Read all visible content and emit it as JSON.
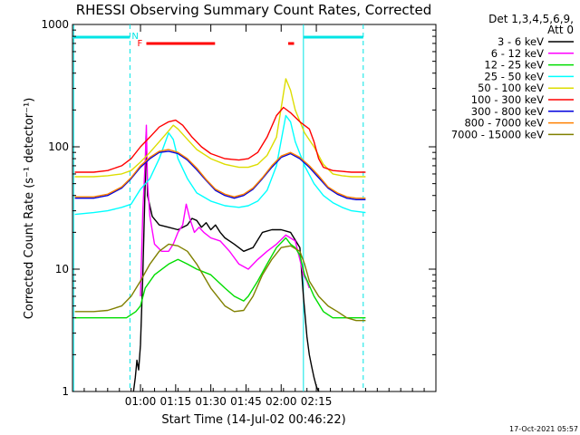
{
  "chart_data": {
    "type": "line",
    "title": "RHESSI Observing Summary Count Rates, Corrected",
    "xlabel": "Start Time (14-Jul-02 00:46:22)",
    "ylabel": "Corrected Count Rate (s⁻¹ detector⁻¹)",
    "yscale": "log",
    "ylim": [
      1,
      1000
    ],
    "xlim_minutes": [
      -15,
      140
    ],
    "x_ticks": [
      {
        "t": 14,
        "label": "01:00"
      },
      {
        "t": 29,
        "label": "01:15"
      },
      {
        "t": 44,
        "label": "01:30"
      },
      {
        "t": 59,
        "label": "01:45"
      },
      {
        "t": 74,
        "label": "02:00"
      },
      {
        "t": 89,
        "label": "02:15"
      }
    ],
    "y_ticks": [
      {
        "v": 1,
        "label": "1"
      },
      {
        "v": 10,
        "label": "10"
      },
      {
        "v": 100,
        "label": "100"
      },
      {
        "v": 1000,
        "label": "1000"
      }
    ],
    "legend_header": [
      "Det 1,3,4,5,6,9,",
      "Att 0"
    ],
    "footer_date": "17-Oct-2021 05:57",
    "flags": {
      "night_label": "N",
      "flare_label": "F",
      "night_intervals": [
        [
          -15,
          9.5
        ],
        [
          83.5,
          109
        ]
      ],
      "flare_intervals": [
        [
          16.5,
          45.8
        ],
        [
          77,
          79.5
        ]
      ],
      "saa_lines_solid": [
        -14.5,
        83.5
      ],
      "saa_lines_dashed": [
        9.5,
        109
      ],
      "night_color": "#00e5e5",
      "flare_color": "#ff0000"
    },
    "series": [
      {
        "name": "3 - 6 keV",
        "color": "#000000",
        "x": [
          11,
          11.8,
          12.5,
          13.2,
          14,
          15,
          16,
          16.4,
          17,
          19,
          22,
          26,
          30,
          34,
          36,
          38,
          40,
          42,
          44,
          46,
          48,
          50,
          54,
          58,
          62,
          66,
          70,
          74,
          78,
          82,
          83.5,
          85,
          86,
          87,
          88,
          89,
          90
        ],
        "y": [
          1.0,
          1.3,
          1.8,
          1.5,
          2.4,
          9.0,
          50,
          130,
          40,
          27,
          23,
          22,
          21,
          23,
          26,
          25,
          22,
          24,
          21,
          23,
          20,
          18,
          16,
          14,
          15,
          20,
          21,
          21,
          20,
          15,
          6,
          2.8,
          2.0,
          1.6,
          1.3,
          1.1,
          1.0
        ]
      },
      {
        "name": "6 - 12 keV",
        "color": "#ff00ff",
        "x": [
          14,
          15,
          16,
          16.5,
          17,
          18,
          20,
          23,
          26,
          28,
          30,
          32,
          33.5,
          35,
          37,
          39,
          41,
          44,
          48,
          52,
          56,
          60,
          64,
          68,
          72,
          76,
          80,
          82,
          83.5,
          85,
          86
        ],
        "y": [
          6,
          30,
          75,
          150,
          50,
          27,
          16,
          14,
          14,
          16,
          20,
          23,
          34,
          26,
          20,
          22,
          20,
          18,
          17,
          14,
          11,
          10,
          12,
          14,
          16,
          19,
          17,
          12,
          9,
          8,
          7
        ]
      },
      {
        "name": "12 - 25 keV",
        "color": "#00dd00",
        "x": [
          -14,
          -8,
          0,
          8,
          12,
          14,
          16,
          20,
          26,
          30,
          34,
          38,
          44,
          50,
          54,
          58,
          60,
          64,
          68,
          72,
          76,
          78,
          80,
          82,
          84,
          88,
          92,
          96,
          100,
          104,
          108,
          110
        ],
        "y": [
          4,
          4,
          4,
          4,
          4.5,
          5,
          7,
          9,
          11,
          12,
          11,
          10,
          9,
          7,
          6,
          5.5,
          6,
          8,
          11,
          15,
          18,
          16,
          15,
          13,
          9,
          6,
          4.5,
          4,
          4,
          4,
          4,
          4
        ]
      },
      {
        "name": "25 - 50 keV",
        "color": "#00ffff",
        "x": [
          -14,
          -6,
          0,
          6,
          10,
          14,
          18,
          22,
          26,
          28,
          30,
          34,
          38,
          44,
          50,
          56,
          60,
          64,
          68,
          72,
          76,
          78,
          80,
          84,
          88,
          92,
          96,
          100,
          104,
          110
        ],
        "y": [
          28,
          29,
          30,
          32,
          34,
          45,
          55,
          80,
          130,
          115,
          80,
          55,
          42,
          36,
          33,
          32,
          33,
          36,
          44,
          70,
          180,
          160,
          110,
          70,
          50,
          40,
          35,
          32,
          30,
          29
        ]
      },
      {
        "name": "50 - 100 keV",
        "color": "#dddd00",
        "x": [
          -14,
          -6,
          0,
          6,
          10,
          14,
          18,
          22,
          26,
          28,
          30,
          34,
          38,
          44,
          50,
          56,
          60,
          64,
          68,
          72,
          76,
          78,
          80,
          84,
          88,
          92,
          96,
          100,
          104,
          110
        ],
        "y": [
          57,
          57,
          58,
          60,
          64,
          75,
          90,
          110,
          135,
          150,
          140,
          115,
          95,
          80,
          72,
          68,
          68,
          72,
          85,
          120,
          360,
          290,
          200,
          130,
          100,
          72,
          60,
          58,
          57,
          57
        ]
      },
      {
        "name": "100 - 300 keV",
        "color": "#ff0000",
        "x": [
          -14,
          -6,
          0,
          6,
          10,
          14,
          18,
          22,
          26,
          29,
          32,
          36,
          40,
          44,
          50,
          56,
          60,
          64,
          68,
          72,
          75,
          78,
          82,
          86,
          88,
          90,
          92,
          96,
          100,
          104,
          110
        ],
        "y": [
          62,
          62,
          64,
          70,
          80,
          100,
          120,
          145,
          160,
          165,
          150,
          120,
          100,
          88,
          80,
          78,
          80,
          90,
          120,
          180,
          210,
          190,
          160,
          140,
          110,
          80,
          68,
          64,
          63,
          62,
          62
        ]
      },
      {
        "name": "300 - 800 keV",
        "color": "#0000dd",
        "x": [
          -14,
          -6,
          0,
          6,
          10,
          14,
          18,
          22,
          26,
          30,
          34,
          38,
          42,
          46,
          50,
          54,
          58,
          62,
          66,
          70,
          74,
          78,
          82,
          86,
          90,
          94,
          98,
          102,
          106,
          110
        ],
        "y": [
          38,
          38,
          40,
          46,
          55,
          68,
          80,
          90,
          92,
          88,
          78,
          65,
          53,
          44,
          40,
          38,
          40,
          45,
          55,
          68,
          82,
          88,
          80,
          68,
          56,
          46,
          41,
          38,
          37,
          37
        ]
      },
      {
        "name": "800 - 7000 keV",
        "color": "#ff8000",
        "x": [
          -14,
          -6,
          0,
          6,
          10,
          14,
          18,
          22,
          26,
          30,
          34,
          38,
          42,
          46,
          50,
          54,
          58,
          62,
          66,
          70,
          74,
          78,
          82,
          86,
          90,
          94,
          98,
          102,
          106,
          110
        ],
        "y": [
          39,
          39,
          41,
          47,
          56,
          70,
          82,
          92,
          95,
          90,
          80,
          67,
          54,
          45,
          41,
          39,
          41,
          46,
          56,
          70,
          84,
          90,
          82,
          70,
          58,
          47,
          42,
          39,
          38,
          38
        ]
      },
      {
        "name": "7000 - 15000 keV",
        "color": "#808000",
        "x": [
          -14,
          -6,
          0,
          6,
          10,
          14,
          18,
          22,
          26,
          30,
          34,
          38,
          44,
          50,
          54,
          58,
          62,
          66,
          70,
          74,
          78,
          82,
          84,
          86,
          90,
          94,
          98,
          102,
          106,
          110
        ],
        "y": [
          4.5,
          4.5,
          4.6,
          5,
          6,
          8,
          11,
          14,
          16,
          15.5,
          14,
          11,
          7,
          5,
          4.5,
          4.6,
          6,
          9,
          12,
          15,
          15.5,
          14,
          11,
          8,
          6,
          5,
          4.5,
          4,
          3.8,
          3.8
        ]
      }
    ]
  }
}
